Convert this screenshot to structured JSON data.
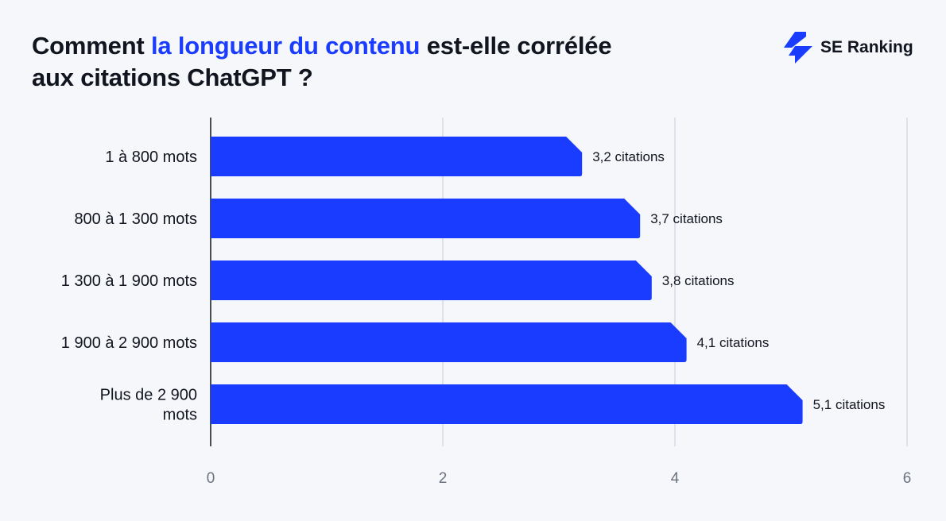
{
  "title": {
    "part1": "Comment ",
    "highlight": "la longueur du contenu",
    "part2": " est-elle corrélée",
    "line2": "aux citations ChatGPT ?"
  },
  "logo": {
    "text": "SE Ranking",
    "icon": "se-ranking-bolt-icon"
  },
  "colors": {
    "bar": "#1a3cff",
    "highlight": "#1a3cff",
    "background": "#f5f7fb",
    "grid": "#dde1ea"
  },
  "chart_data": {
    "type": "bar",
    "orientation": "horizontal",
    "categories": [
      [
        "1 à 800 mots"
      ],
      [
        "800 à 1 300 mots"
      ],
      [
        "1 300 à 1 900 mots"
      ],
      [
        "1 900 à 2 900 mots"
      ],
      [
        "Plus de 2 900",
        "mots"
      ]
    ],
    "values": [
      3.2,
      3.7,
      3.8,
      4.1,
      5.1
    ],
    "data_labels": [
      "3,2 citations",
      "3,7 citations",
      "3,8 citations",
      "4,1 citations",
      "5,1 citations"
    ],
    "xlim": [
      0,
      6
    ],
    "xticks": [
      0,
      2,
      4,
      6
    ],
    "xtick_labels": [
      "0",
      "2",
      "4",
      "6"
    ],
    "grid": "vertical",
    "xlabel": "",
    "ylabel": ""
  }
}
